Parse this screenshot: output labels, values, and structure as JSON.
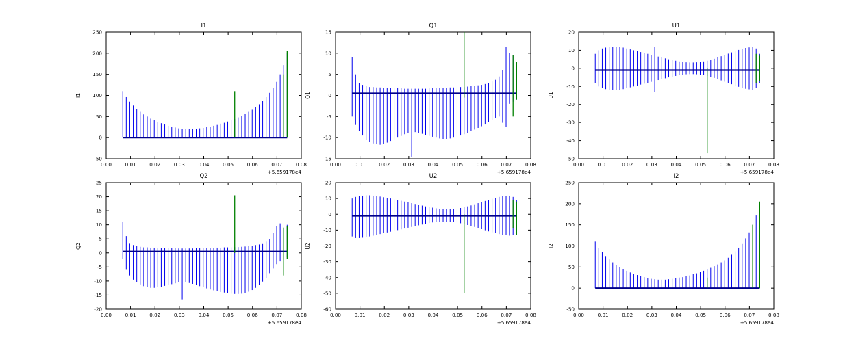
{
  "figure_title": "",
  "chart_data": {
    "type": "stem",
    "x_axis": {
      "ticks": [
        "0.00",
        "0.01",
        "0.02",
        "0.03",
        "0.04",
        "0.05",
        "0.06",
        "0.07",
        "0.08"
      ],
      "offset_label": "+5.659178e4",
      "min": 0,
      "max": 0.08
    },
    "colors": {
      "stem": "#0000ee",
      "green": "#008000",
      "baseline": "#00008b",
      "axis": "#000000"
    },
    "x": [
      0.0068,
      0.00823,
      0.00967,
      0.0111,
      0.01254,
      0.01397,
      0.0154,
      0.01684,
      0.01827,
      0.01971,
      0.02114,
      0.02257,
      0.02401,
      0.02544,
      0.02688,
      0.02831,
      0.02974,
      0.03118,
      0.03261,
      0.03405,
      0.03548,
      0.03691,
      0.03835,
      0.03978,
      0.04122,
      0.04265,
      0.04408,
      0.04552,
      0.04695,
      0.04839,
      0.04982,
      0.05125,
      0.05269,
      0.05412,
      0.05556,
      0.05699,
      0.05842,
      0.05986,
      0.06129,
      0.06273,
      0.06416,
      0.06559,
      0.06703,
      0.06846,
      0.0699,
      0.07133,
      0.07276,
      0.0742
    ],
    "charts": [
      {
        "title": "I1",
        "ylabel": "I1",
        "row": 0,
        "col": 0,
        "ylim": [
          -50,
          250
        ],
        "yticks": [
          -50,
          0,
          50,
          100,
          150,
          200,
          250
        ],
        "baseline": 0,
        "top": [
          110,
          96,
          85,
          76,
          68,
          61,
          55,
          50,
          45,
          41,
          37,
          34,
          31,
          28,
          26,
          24,
          22,
          21,
          20,
          20,
          20,
          21,
          22,
          23,
          25,
          26,
          28,
          30,
          33,
          35,
          38,
          41,
          44,
          48,
          52,
          56,
          61,
          66,
          72,
          79,
          87,
          96,
          106,
          118,
          132,
          150,
          172,
          200
        ],
        "bottom": null,
        "green": [
          {
            "x": 0.05269,
            "y0": 0,
            "y1": 110
          },
          {
            "x": 0.07276,
            "y0": 0,
            "y1": 150
          },
          {
            "x": 0.0742,
            "y0": 0,
            "y1": 205
          }
        ]
      },
      {
        "title": "Q1",
        "ylabel": "Q1",
        "row": 0,
        "col": 1,
        "ylim": [
          -15,
          15
        ],
        "yticks": [
          -15,
          -10,
          -5,
          0,
          5,
          10,
          15
        ],
        "baseline": 0.5,
        "top": [
          9,
          5,
          3,
          2.5,
          2.2,
          2,
          2,
          1.9,
          1.9,
          1.8,
          1.8,
          1.8,
          1.7,
          1.7,
          1.7,
          1.6,
          1.6,
          1.6,
          1.6,
          1.6,
          1.6,
          1.6,
          1.7,
          1.7,
          1.7,
          1.8,
          1.8,
          1.8,
          1.9,
          1.9,
          2,
          2,
          2,
          2.1,
          2.2,
          2.3,
          2.4,
          2.5,
          2.7,
          3,
          3.3,
          3.7,
          4.5,
          6,
          11.5,
          10,
          9.5,
          8
        ],
        "bottom": [
          -5,
          -7,
          -8.5,
          -9.5,
          -10.5,
          -11,
          -11.4,
          -11.6,
          -11.7,
          -11.5,
          -11.2,
          -10.8,
          -10.4,
          -10,
          -9.6,
          -9.2,
          -8.9,
          -14.5,
          -8.7,
          -8.9,
          -9.1,
          -9.4,
          -9.6,
          -9.8,
          -10,
          -10.2,
          -10.3,
          -10.3,
          -10.2,
          -10,
          -9.8,
          -9.5,
          -9.2,
          -8.9,
          -8.5,
          -8.1,
          -7.7,
          -7.3,
          -6.9,
          -6.4,
          -5.9,
          -5.4,
          -5,
          -6.5,
          -7.5,
          -2,
          -1.5,
          -1
        ],
        "green": [
          {
            "x": 0.05269,
            "y0": -0.5,
            "y1": 15
          },
          {
            "x": 0.07276,
            "y0": -5,
            "y1": 9.5
          },
          {
            "x": 0.0742,
            "y0": -1,
            "y1": 8
          }
        ]
      },
      {
        "title": "U1",
        "ylabel": "U1",
        "row": 0,
        "col": 2,
        "ylim": [
          -50,
          20
        ],
        "yticks": [
          -50,
          -40,
          -30,
          -20,
          -10,
          0,
          10,
          20
        ],
        "baseline": -1,
        "top": [
          8,
          10,
          11,
          11.5,
          11.8,
          12,
          12,
          11.8,
          11.5,
          11,
          10.5,
          10,
          9.5,
          9,
          8.5,
          8,
          7.5,
          12,
          6.5,
          6,
          5.5,
          5,
          4.6,
          4.2,
          3.8,
          3.5,
          3.3,
          3.2,
          3.2,
          3.3,
          3.5,
          3.8,
          4.2,
          4.7,
          5.3,
          6,
          6.7,
          7.4,
          8.1,
          8.8,
          9.5,
          10.2,
          10.8,
          11.3,
          11.6,
          11.8,
          11,
          8
        ],
        "bottom": [
          -8,
          -10,
          -11,
          -11.5,
          -11.8,
          -12,
          -12,
          -11.8,
          -11.5,
          -11,
          -10.5,
          -10,
          -9.5,
          -9,
          -8.5,
          -8,
          -7.5,
          -13,
          -6.5,
          -6,
          -5.5,
          -5,
          -4.6,
          -4.2,
          -3.8,
          -3.5,
          -3.3,
          -3.2,
          -3.2,
          -3.3,
          -3.5,
          -3.8,
          -4.2,
          -4.7,
          -5.3,
          -6,
          -6.7,
          -7.4,
          -8.1,
          -8.8,
          -9.5,
          -10.2,
          -10.8,
          -11.3,
          -11.6,
          -11.8,
          -11,
          -8
        ],
        "green": [
          {
            "x": 0.05269,
            "y0": -47,
            "y1": 0
          },
          {
            "x": 0.07276,
            "y0": -8,
            "y1": 8
          },
          {
            "x": 0.0742,
            "y0": -7,
            "y1": 7
          }
        ]
      },
      {
        "title": "Q2",
        "ylabel": "Q2",
        "row": 1,
        "col": 0,
        "ylim": [
          -20,
          25
        ],
        "yticks": [
          -20,
          -15,
          -10,
          -5,
          0,
          5,
          10,
          15,
          20,
          25
        ],
        "baseline": 0.5,
        "top": [
          11,
          6,
          3.5,
          2.8,
          2.4,
          2.2,
          2,
          2,
          1.9,
          1.9,
          1.8,
          1.8,
          1.8,
          1.7,
          1.7,
          1.7,
          1.6,
          1.6,
          1.6,
          1.6,
          1.6,
          1.7,
          1.7,
          1.7,
          1.8,
          1.8,
          1.8,
          1.9,
          1.9,
          2,
          2,
          2,
          2.1,
          2.1,
          2.2,
          2.3,
          2.4,
          2.6,
          2.8,
          3,
          3.4,
          4,
          5,
          7,
          9.5,
          10.5,
          9,
          10
        ],
        "bottom": [
          -2,
          -6,
          -8,
          -9.5,
          -10.5,
          -11.2,
          -11.8,
          -12.2,
          -12.4,
          -12.4,
          -12.2,
          -12,
          -11.7,
          -11.4,
          -11.1,
          -10.8,
          -10.5,
          -16.5,
          -10.4,
          -10.7,
          -11,
          -11.4,
          -11.8,
          -12.2,
          -12.6,
          -13,
          -13.3,
          -13.6,
          -13.9,
          -14.1,
          -14.3,
          -14.5,
          -14.6,
          -14.6,
          -14.5,
          -14.2,
          -13.8,
          -13.2,
          -12.4,
          -11.4,
          -10.2,
          -8.8,
          -7.2,
          -5.5,
          -4,
          -3,
          -2,
          -1.5
        ],
        "green": [
          {
            "x": 0.05269,
            "y0": 0,
            "y1": 20.5
          },
          {
            "x": 0.07276,
            "y0": -8,
            "y1": 9
          },
          {
            "x": 0.0742,
            "y0": -2,
            "y1": 9.5
          }
        ]
      },
      {
        "title": "U2",
        "ylabel": "U2",
        "row": 1,
        "col": 1,
        "ylim": [
          -60,
          20
        ],
        "yticks": [
          -60,
          -50,
          -40,
          -30,
          -20,
          -10,
          0,
          10,
          20
        ],
        "baseline": -1,
        "top": [
          10,
          11,
          11.5,
          11.8,
          12,
          12,
          11.8,
          11.5,
          11.2,
          10.8,
          10.4,
          10,
          9.5,
          9,
          8.5,
          8,
          7.5,
          7,
          6.5,
          6,
          5.5,
          5,
          4.6,
          4.2,
          3.8,
          3.5,
          3.3,
          3.2,
          3.2,
          3.3,
          3.6,
          4,
          4.5,
          5,
          5.6,
          6.3,
          7,
          7.7,
          8.4,
          9.1,
          9.8,
          10.4,
          11,
          11.4,
          11.7,
          11.8,
          11,
          9
        ],
        "bottom": [
          -14,
          -15,
          -15,
          -14.8,
          -14.5,
          -14,
          -13.5,
          -13,
          -12.5,
          -12,
          -11.5,
          -11,
          -10.5,
          -10,
          -9.5,
          -9,
          -8.5,
          -8,
          -7.5,
          -7,
          -6.5,
          -6,
          -5.5,
          -5.2,
          -5,
          -4.8,
          -4.7,
          -4.7,
          -4.8,
          -5,
          -5.3,
          -5.7,
          -6.2,
          -6.8,
          -7.4,
          -8,
          -8.7,
          -9.4,
          -10.1,
          -10.8,
          -11.4,
          -12,
          -12.5,
          -13,
          -13.3,
          -13.5,
          -13,
          -11
        ],
        "green": [
          {
            "x": 0.05269,
            "y0": -50,
            "y1": 0
          },
          {
            "x": 0.07276,
            "y0": -9,
            "y1": 9
          },
          {
            "x": 0.0742,
            "y0": -13,
            "y1": 8
          }
        ]
      },
      {
        "title": "I2",
        "ylabel": "I2",
        "row": 1,
        "col": 2,
        "ylim": [
          -50,
          250
        ],
        "yticks": [
          -50,
          0,
          50,
          100,
          150,
          200,
          250
        ],
        "baseline": 0,
        "top": [
          110,
          96,
          85,
          76,
          68,
          61,
          55,
          50,
          45,
          41,
          37,
          34,
          31,
          28,
          26,
          24,
          22,
          21,
          20,
          20,
          20,
          21,
          22,
          23,
          25,
          26,
          28,
          30,
          33,
          35,
          38,
          41,
          44,
          48,
          52,
          56,
          61,
          66,
          72,
          79,
          87,
          96,
          106,
          118,
          132,
          150,
          172,
          200
        ],
        "bottom": null,
        "green": [
          {
            "x": 0.05269,
            "y0": 0,
            "y1": 25
          },
          {
            "x": 0.07133,
            "y0": 0,
            "y1": 150
          },
          {
            "x": 0.0742,
            "y0": 0,
            "y1": 205
          }
        ]
      }
    ]
  }
}
